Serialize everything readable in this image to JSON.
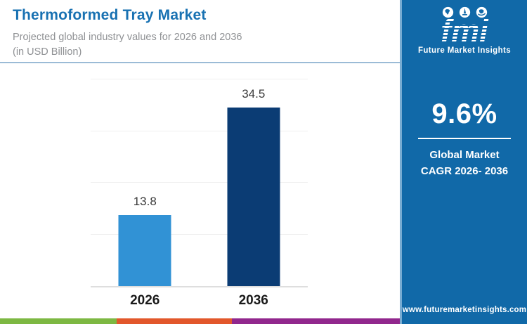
{
  "header": {
    "title": "Thermoformed Tray Market",
    "subtitle_line1": "Projected global industry values for 2026 and 2036",
    "subtitle_line2": "(in USD Billion)"
  },
  "chart_data": {
    "type": "bar",
    "categories": [
      "2026",
      "2036"
    ],
    "values": [
      13.8,
      34.5
    ],
    "value_labels": [
      "13.8",
      "34.5"
    ],
    "bar_colors": [
      "#3192D5",
      "#0B3C74"
    ],
    "title": "Thermoformed Tray Market",
    "subtitle": "Projected global industry values for 2026 and 2036 (in USD Billion)",
    "xlabel": "",
    "ylabel": "",
    "ylim": [
      0,
      40
    ],
    "gridline_step": 10,
    "grid": "horizontal-only, no y-axis tick labels",
    "legend": "none"
  },
  "sidebar": {
    "background_color": "#1169A8",
    "logo": {
      "brand": "fmi",
      "brand_caption": "Future Market Insights",
      "icons": [
        "map-icon",
        "monument-icon",
        "globe-icon"
      ]
    },
    "cagr_value": "9.6%",
    "cagr_label_line1": "Global Market",
    "cagr_label_line2": "CAGR 2026- 2036",
    "website": "www.futuremarketinsights.com"
  },
  "footer_stripe": {
    "colors": [
      "#7DB842",
      "#E2572B",
      "#91278D",
      "#1169A8"
    ]
  },
  "accent_colors": {
    "title_blue": "#1871B2",
    "header_rule": "#9BBBD6",
    "subtitle_gray": "#8F9194",
    "bar_light_blue": "#3192D5",
    "bar_dark_navy": "#0B3C74"
  }
}
